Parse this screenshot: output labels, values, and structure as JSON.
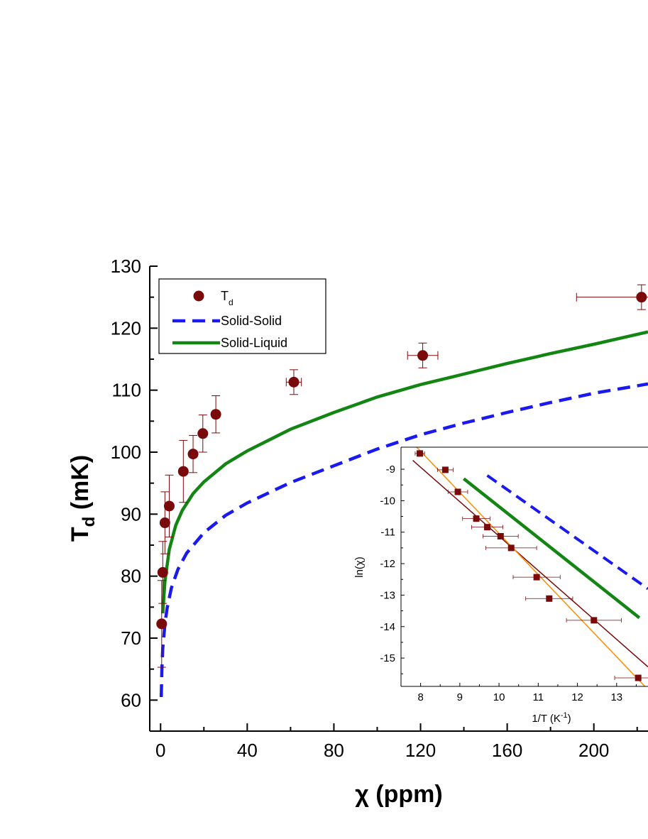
{
  "chart_data": [
    {
      "type": "scatter",
      "title": "",
      "xlabel": "χ (ppm)",
      "ylabel": "T",
      "ylabel_sub": "d",
      "ylabel_unit": " (mK)",
      "xlim": [
        -5,
        225
      ],
      "ylim": [
        55,
        130
      ],
      "xticks": [
        0,
        40,
        80,
        120,
        160,
        200
      ],
      "yticks": [
        60,
        70,
        80,
        90,
        100,
        110,
        120,
        130
      ],
      "legend": {
        "placement": "top-left",
        "entries": [
          {
            "label": "T",
            "sub": "d",
            "style": "marker"
          },
          {
            "label": "Solid-Solid",
            "style": "dashed"
          },
          {
            "label": "Solid-Liquid",
            "style": "solid"
          }
        ]
      },
      "colors": {
        "data": "#7a0a0a",
        "solid_solid": "#1a1aee",
        "solid_liquid": "#138513"
      },
      "points": [
        {
          "x": 0.5,
          "y": 72.3,
          "xerr": 0.3,
          "yerr": 7.0
        },
        {
          "x": 1.0,
          "y": 80.6,
          "xerr": 0.4,
          "yerr": 5.0
        },
        {
          "x": 2.0,
          "y": 88.6,
          "xerr": 0.6,
          "yerr": 5.0
        },
        {
          "x": 4.0,
          "y": 91.3,
          "xerr": 0.8,
          "yerr": 5.0
        },
        {
          "x": 10.5,
          "y": 96.9,
          "xerr": 1.0,
          "yerr": 5.0
        },
        {
          "x": 15.0,
          "y": 99.7,
          "xerr": 1.2,
          "yerr": 3.0
        },
        {
          "x": 19.5,
          "y": 103.0,
          "xerr": 1.3,
          "yerr": 3.0
        },
        {
          "x": 25.5,
          "y": 106.1,
          "xerr": 1.5,
          "yerr": 3.0
        },
        {
          "x": 61.5,
          "y": 111.3,
          "xerr": 3.5,
          "yerr": 2.0
        },
        {
          "x": 121.0,
          "y": 115.6,
          "xerr": 7.0,
          "yerr": 2.0
        },
        {
          "x": 222.0,
          "y": 125.0,
          "xerr": 30.0,
          "yerr": 2.0
        }
      ],
      "solid_liquid_curve": {
        "x": [
          1,
          2,
          4,
          7,
          10,
          15,
          20,
          30,
          40,
          60,
          80,
          100,
          120,
          140,
          160,
          180,
          200,
          225
        ],
        "y": [
          74,
          79.2,
          84.3,
          88.2,
          90.6,
          93.3,
          95.2,
          98.1,
          100.2,
          103.7,
          106.4,
          108.9,
          110.9,
          112.6,
          114.3,
          115.9,
          117.4,
          119.4
        ]
      },
      "solid_solid_curve": {
        "x": [
          0.3,
          0.6,
          1,
          2,
          3,
          5,
          8,
          12,
          20,
          30,
          40,
          60,
          80,
          100,
          120,
          140,
          160,
          180,
          200,
          225
        ],
        "y": [
          60.5,
          65,
          68.3,
          72.3,
          74.8,
          78.1,
          81.1,
          83.7,
          87.0,
          89.8,
          91.8,
          95.1,
          97.8,
          100.5,
          102.8,
          104.7,
          106.4,
          108.0,
          109.5,
          111.0
        ]
      }
    },
    {
      "type": "scatter",
      "title": "",
      "xlabel": "1/T (K",
      "xlabel_sup": "-1",
      "xlabel_end": ")",
      "ylabel": "ln(χ)",
      "xlim": [
        7.5,
        13.8
      ],
      "ylim": [
        -15.9,
        -8.3
      ],
      "xticks": [
        8,
        9,
        10,
        11,
        12,
        13
      ],
      "yticks": [
        -9,
        -10,
        -11,
        -12,
        -13,
        -14,
        -15
      ],
      "colors": {
        "data": "#7a0a0a",
        "fit_1": "#7a0a0a",
        "fit_2": "#ff8c00",
        "solid_liquid": "#138513",
        "solid_solid": "#1a1aee"
      },
      "points": [
        {
          "x": 7.98,
          "y": -8.5,
          "xerr": 0.12,
          "yerr": 0.1
        },
        {
          "x": 8.63,
          "y": -9.02,
          "xerr": 0.2,
          "yerr": 0.08
        },
        {
          "x": 8.95,
          "y": -9.72,
          "xerr": 0.25,
          "yerr": 0.08
        },
        {
          "x": 9.42,
          "y": -10.57,
          "xerr": 0.35,
          "yerr": 0.08
        },
        {
          "x": 9.7,
          "y": -10.84,
          "xerr": 0.4,
          "yerr": 0.08
        },
        {
          "x": 10.04,
          "y": -11.13,
          "xerr": 0.45,
          "yerr": 0.08
        },
        {
          "x": 10.31,
          "y": -11.5,
          "xerr": 0.65,
          "yerr": 0.08
        },
        {
          "x": 10.96,
          "y": -12.43,
          "xerr": 0.6,
          "yerr": 0.1
        },
        {
          "x": 11.28,
          "y": -13.11,
          "xerr": 0.6,
          "yerr": 0.1
        },
        {
          "x": 12.42,
          "y": -13.8,
          "xerr": 0.7,
          "yerr": 0.1
        },
        {
          "x": 13.55,
          "y": -15.63,
          "xerr": 0.6,
          "yerr": 0.1
        }
      ],
      "fit_1_line": {
        "x": [
          7.8,
          13.8
        ],
        "y": [
          -8.72,
          -15.28
        ]
      },
      "fit_2_line": {
        "x": [
          7.9,
          13.72
        ],
        "y": [
          -8.3,
          -15.9
        ]
      },
      "solid_liquid_line": {
        "x": [
          9.1,
          13.58
        ],
        "y": [
          -9.3,
          -13.72
        ]
      },
      "solid_solid_line": {
        "x": [
          9.7,
          13.8
        ],
        "y": [
          -9.2,
          -12.8
        ]
      }
    }
  ]
}
